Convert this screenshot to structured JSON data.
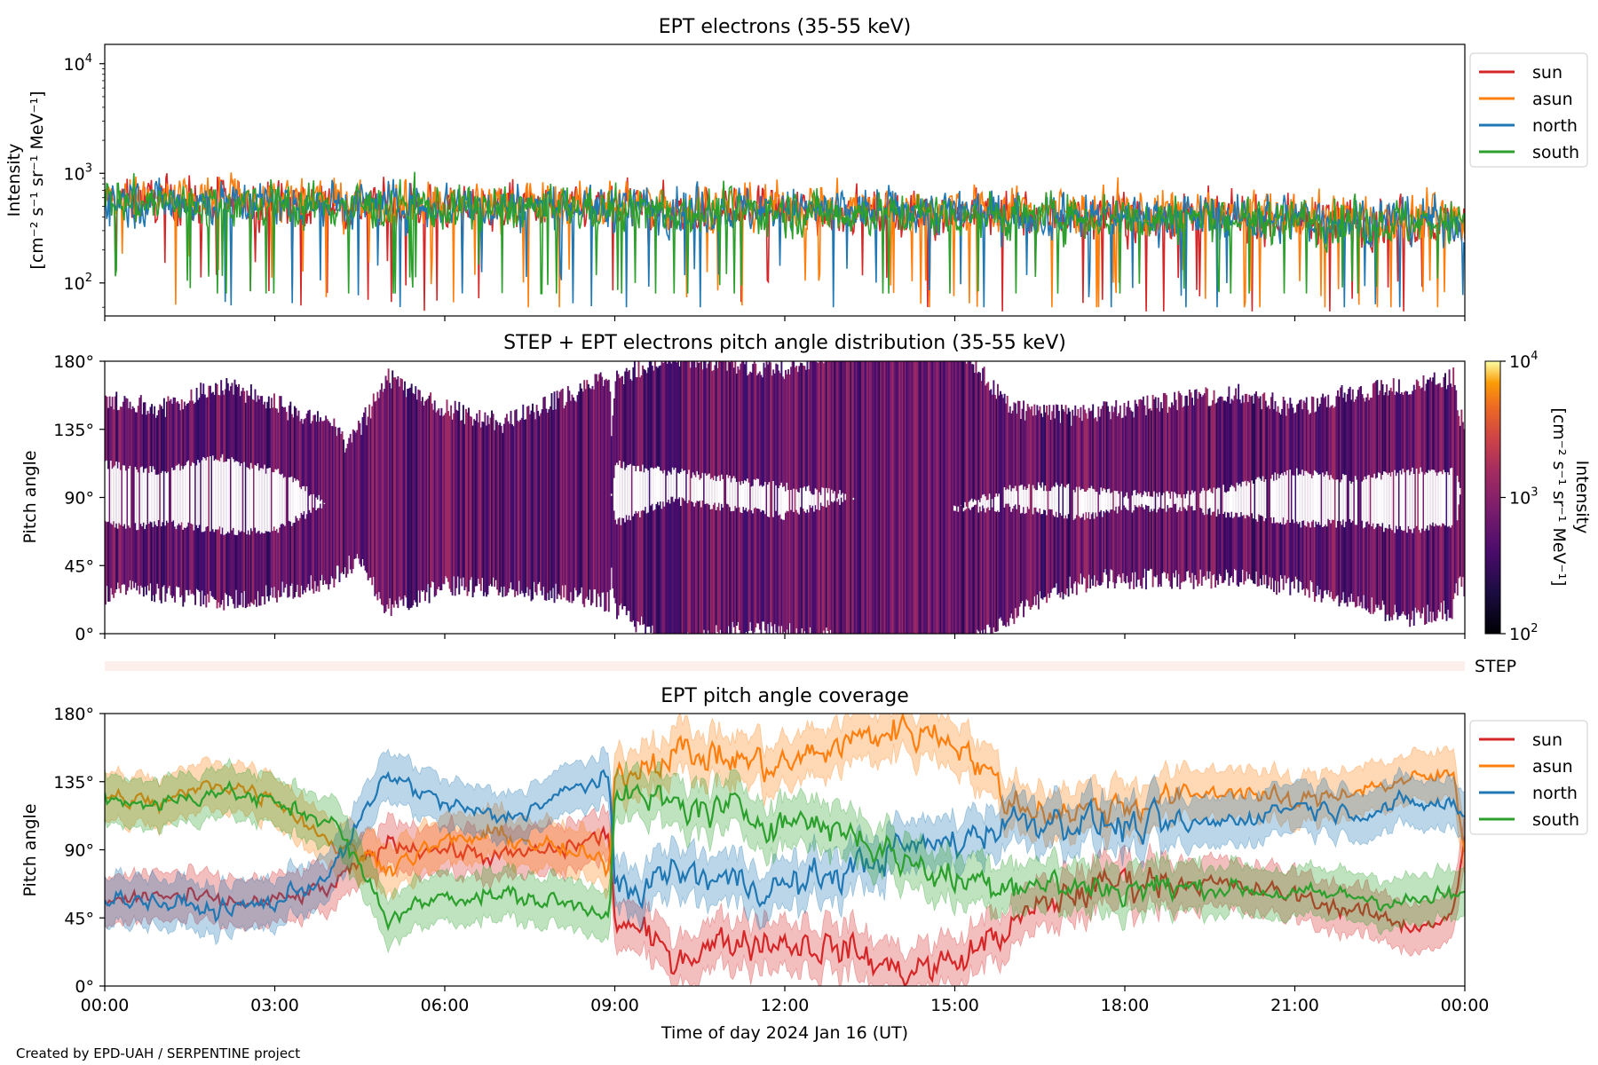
{
  "figure": {
    "credit": "Created by EPD-UAH / SERPENTINE project"
  },
  "colors": {
    "sun": "#d62728",
    "asun": "#ff7f0e",
    "north": "#1f77b4",
    "south": "#2ca02c"
  },
  "chart_data": [
    {
      "type": "line",
      "title": "EPT electrons (35-55 keV)",
      "ylabel": "Intensity",
      "ylabel_unit": "[cm⁻² s⁻¹ sr⁻¹ MeV⁻¹]",
      "yscale": "log",
      "ylim": [
        50,
        15000
      ],
      "yticks": [
        {
          "v": 100,
          "exp": "2"
        },
        {
          "v": 1000,
          "exp": "3"
        },
        {
          "v": 10000,
          "exp": "4"
        }
      ],
      "x_range_hours": [
        0,
        24
      ],
      "legend": "outside-right",
      "series": [
        {
          "name": "sun",
          "typical": 550,
          "min": 55,
          "max": 1300
        },
        {
          "name": "asun",
          "typical": 600,
          "min": 60,
          "max": 1350
        },
        {
          "name": "north",
          "typical": 560,
          "min": 60,
          "max": 1200
        },
        {
          "name": "south",
          "typical": 540,
          "min": 80,
          "max": 1250
        }
      ]
    },
    {
      "type": "heatmap",
      "title": "STEP + EPT electrons pitch angle distribution (35-55 keV)",
      "ylabel": "Pitch angle",
      "ylim": [
        0,
        180
      ],
      "yticks": [
        "0°",
        "45°",
        "90°",
        "135°",
        "180°"
      ],
      "colorbar": {
        "label": "Intensity",
        "unit": "[cm⁻² s⁻¹ sr⁻¹ MeV⁻¹]",
        "scale": "log",
        "range": [
          100,
          10000
        ],
        "ticks": [
          {
            "v": 100,
            "exp": "2"
          },
          {
            "v": 1000,
            "exp": "3"
          },
          {
            "v": 10000,
            "exp": "4"
          }
        ],
        "colormap": "inferno"
      }
    },
    {
      "type": "band",
      "label": "STEP"
    },
    {
      "type": "line",
      "title": "EPT pitch angle coverage",
      "ylabel": "Pitch angle",
      "ylim": [
        0,
        180
      ],
      "yticks": [
        "0°",
        "45°",
        "90°",
        "135°",
        "180°"
      ],
      "xlabel": "Time of day 2024 Jan 16 (UT)",
      "xticks": [
        "00:00",
        "03:00",
        "06:00",
        "09:00",
        "12:00",
        "15:00",
        "18:00",
        "21:00",
        "00:00"
      ],
      "legend": "outside-right",
      "series": [
        {
          "name": "sun",
          "x": [
            0,
            1,
            2,
            3,
            4,
            5,
            6,
            7,
            8,
            8.9,
            9,
            10,
            11,
            12,
            13,
            14,
            15,
            16,
            17,
            18,
            19,
            20,
            21,
            22,
            23,
            23.8,
            24
          ],
          "y": [
            55,
            60,
            55,
            55,
            65,
            95,
            90,
            85,
            90,
            100,
            45,
            20,
            30,
            30,
            25,
            10,
            15,
            40,
            60,
            70,
            70,
            65,
            60,
            50,
            40,
            45,
            100
          ]
        },
        {
          "name": "asun",
          "x": [
            0,
            1,
            2,
            3,
            4,
            5,
            6,
            7,
            8,
            8.9,
            9,
            10,
            11,
            12,
            13,
            14,
            15,
            16,
            17,
            18,
            19,
            20,
            21,
            22,
            23,
            23.8,
            24
          ],
          "y": [
            125,
            120,
            135,
            125,
            95,
            80,
            95,
            100,
            90,
            80,
            140,
            155,
            150,
            145,
            160,
            170,
            165,
            120,
            115,
            120,
            125,
            130,
            120,
            130,
            135,
            140,
            90
          ]
        },
        {
          "name": "north",
          "x": [
            0,
            1,
            2,
            3,
            4,
            5,
            6,
            7,
            8,
            8.9,
            9,
            10,
            11,
            12,
            13,
            14,
            15,
            16,
            17,
            18,
            19,
            20,
            21,
            22,
            23,
            23.8,
            24
          ],
          "y": [
            60,
            55,
            50,
            55,
            75,
            140,
            120,
            110,
            125,
            140,
            60,
            75,
            70,
            65,
            75,
            90,
            95,
            110,
            110,
            105,
            105,
            110,
            120,
            115,
            120,
            120,
            110
          ]
        },
        {
          "name": "south",
          "x": [
            0,
            1,
            2,
            3,
            4,
            5,
            6,
            7,
            8,
            8.9,
            9,
            10,
            11,
            12,
            13,
            14,
            15,
            16,
            17,
            18,
            19,
            20,
            21,
            22,
            23,
            23.8,
            24
          ],
          "y": [
            125,
            120,
            130,
            120,
            110,
            45,
            60,
            60,
            55,
            50,
            125,
            120,
            115,
            110,
            105,
            85,
            70,
            70,
            65,
            65,
            65,
            65,
            60,
            60,
            55,
            60,
            60
          ]
        }
      ]
    }
  ]
}
